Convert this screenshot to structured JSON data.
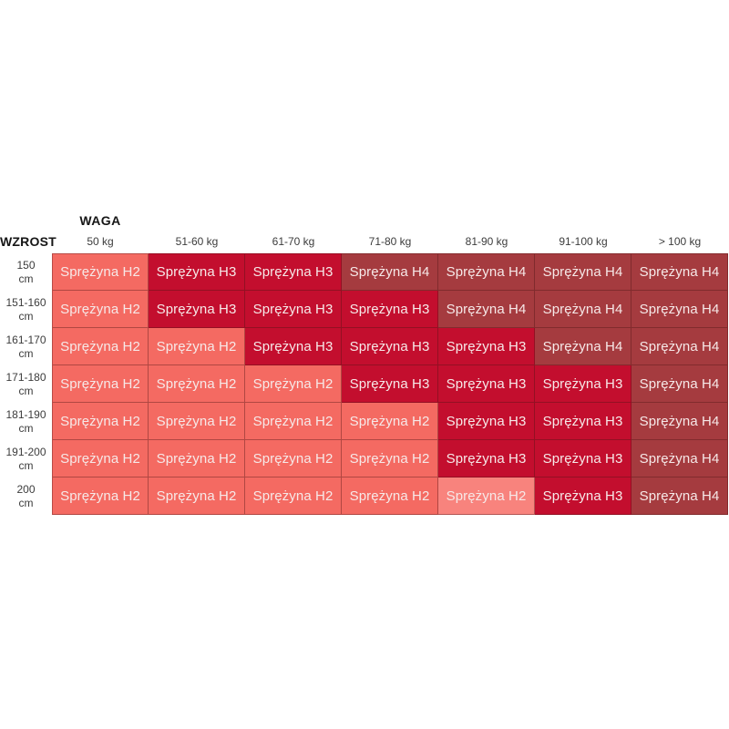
{
  "table": {
    "weight_axis_label": "WAGA",
    "corner_label": "WZROST",
    "columns": [
      "50 kg",
      "51-60 kg",
      "61-70 kg",
      "71-80 kg",
      "81-90 kg",
      "91-100 kg",
      "> 100 kg"
    ],
    "level_colors": {
      "H2": "#f46a62",
      "H3": "#c30e2e",
      "H4": "#a53b3f"
    },
    "cell_text_color": "#f6e9e8",
    "rows": [
      {
        "label": "150",
        "unit": "cm",
        "cells": [
          {
            "text": "Sprężyna H2",
            "level": "H2"
          },
          {
            "text": "Sprężyna H3",
            "level": "H3"
          },
          {
            "text": "Sprężyna H3",
            "level": "H3"
          },
          {
            "text": "Sprężyna H4",
            "level": "H4"
          },
          {
            "text": "Sprężyna H4",
            "level": "H4"
          },
          {
            "text": "Sprężyna H4",
            "level": "H4"
          },
          {
            "text": "Sprężyna H4",
            "level": "H4"
          }
        ]
      },
      {
        "label": "151-160",
        "unit": "cm",
        "cells": [
          {
            "text": "Sprężyna H2",
            "level": "H2"
          },
          {
            "text": "Sprężyna H3",
            "level": "H3"
          },
          {
            "text": "Sprężyna H3",
            "level": "H3"
          },
          {
            "text": "Sprężyna H3",
            "level": "H3"
          },
          {
            "text": "Sprężyna H4",
            "level": "H4"
          },
          {
            "text": "Sprężyna H4",
            "level": "H4"
          },
          {
            "text": "Sprężyna H4",
            "level": "H4"
          }
        ]
      },
      {
        "label": "161-170",
        "unit": "cm",
        "cells": [
          {
            "text": "Sprężyna H2",
            "level": "H2"
          },
          {
            "text": "Sprężyna H2",
            "level": "H2"
          },
          {
            "text": "Sprężyna H3",
            "level": "H3"
          },
          {
            "text": "Sprężyna H3",
            "level": "H3"
          },
          {
            "text": "Sprężyna H3",
            "level": "H3"
          },
          {
            "text": "Sprężyna H4",
            "level": "H4"
          },
          {
            "text": "Sprężyna H4",
            "level": "H4"
          }
        ]
      },
      {
        "label": "171-180",
        "unit": "cm",
        "cells": [
          {
            "text": "Sprężyna H2",
            "level": "H2"
          },
          {
            "text": "Sprężyna H2",
            "level": "H2"
          },
          {
            "text": "Sprężyna H2",
            "level": "H2"
          },
          {
            "text": "Sprężyna H3",
            "level": "H3"
          },
          {
            "text": "Sprężyna H3",
            "level": "H3"
          },
          {
            "text": "Sprężyna H3",
            "level": "H3"
          },
          {
            "text": "Sprężyna H4",
            "level": "H4"
          }
        ]
      },
      {
        "label": "181-190",
        "unit": "cm",
        "cells": [
          {
            "text": "Sprężyna H2",
            "level": "H2"
          },
          {
            "text": "Sprężyna H2",
            "level": "H2"
          },
          {
            "text": "Sprężyna H2",
            "level": "H2"
          },
          {
            "text": "Sprężyna H2",
            "level": "H2"
          },
          {
            "text": "Sprężyna H3",
            "level": "H3"
          },
          {
            "text": "Sprężyna H3",
            "level": "H3"
          },
          {
            "text": "Sprężyna H4",
            "level": "H4"
          }
        ]
      },
      {
        "label": "191-200",
        "unit": "cm",
        "cells": [
          {
            "text": "Sprężyna H2",
            "level": "H2"
          },
          {
            "text": "Sprężyna H2",
            "level": "H2"
          },
          {
            "text": "Sprężyna H2",
            "level": "H2"
          },
          {
            "text": "Sprężyna H2",
            "level": "H2"
          },
          {
            "text": "Sprężyna H3",
            "level": "H3"
          },
          {
            "text": "Sprężyna H3",
            "level": "H3"
          },
          {
            "text": "Sprężyna H4",
            "level": "H4"
          }
        ]
      },
      {
        "label": "200",
        "unit": "cm",
        "cells": [
          {
            "text": "Sprężyna H2",
            "level": "H2"
          },
          {
            "text": "Sprężyna H2",
            "level": "H2"
          },
          {
            "text": "Sprężyna H2",
            "level": "H2"
          },
          {
            "text": "Sprężyna H2",
            "level": "H2"
          },
          {
            "text": "Sprężyna H2",
            "level": "H2",
            "color": "#f8837d"
          },
          {
            "text": "Sprężyna H3",
            "level": "H3"
          },
          {
            "text": "Sprężyna H4",
            "level": "H4"
          }
        ]
      }
    ]
  },
  "chart_data": {
    "type": "heatmap",
    "title": "",
    "xlabel": "WAGA",
    "ylabel": "WZROST",
    "x_categories": [
      "50 kg",
      "51-60 kg",
      "61-70 kg",
      "71-80 kg",
      "81-90 kg",
      "91-100 kg",
      "> 100 kg"
    ],
    "y_categories": [
      "150 cm",
      "151-160 cm",
      "161-170 cm",
      "171-180 cm",
      "181-190 cm",
      "191-200 cm",
      "200 cm"
    ],
    "values": [
      [
        "Sprężyna H2",
        "Sprężyna H3",
        "Sprężyna H3",
        "Sprężyna H4",
        "Sprężyna H4",
        "Sprężyna H4",
        "Sprężyna H4"
      ],
      [
        "Sprężyna H2",
        "Sprężyna H3",
        "Sprężyna H3",
        "Sprężyna H3",
        "Sprężyna H4",
        "Sprężyna H4",
        "Sprężyna H4"
      ],
      [
        "Sprężyna H2",
        "Sprężyna H2",
        "Sprężyna H3",
        "Sprężyna H3",
        "Sprężyna H3",
        "Sprężyna H4",
        "Sprężyna H4"
      ],
      [
        "Sprężyna H2",
        "Sprężyna H2",
        "Sprężyna H2",
        "Sprężyna H3",
        "Sprężyna H3",
        "Sprężyna H3",
        "Sprężyna H4"
      ],
      [
        "Sprężyna H2",
        "Sprężyna H2",
        "Sprężyna H2",
        "Sprężyna H2",
        "Sprężyna H3",
        "Sprężyna H3",
        "Sprężyna H4"
      ],
      [
        "Sprężyna H2",
        "Sprężyna H2",
        "Sprężyna H2",
        "Sprężyna H2",
        "Sprężyna H3",
        "Sprężyna H3",
        "Sprężyna H4"
      ],
      [
        "Sprężyna H2",
        "Sprężyna H2",
        "Sprężyna H2",
        "Sprężyna H2",
        "Sprężyna H2",
        "Sprężyna H3",
        "Sprężyna H4"
      ]
    ],
    "legend": {
      "H2": "#f46a62",
      "H3": "#c30e2e",
      "H4": "#a53b3f"
    },
    "grid": true,
    "legend_position": "none"
  }
}
